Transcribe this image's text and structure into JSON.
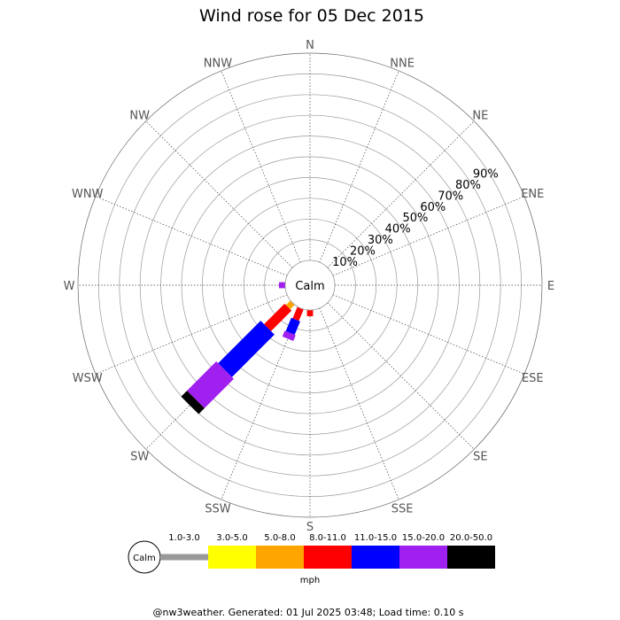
{
  "chart_data": {
    "type": "wind-rose",
    "title": "Wind rose for 05 Dec 2015",
    "directions": [
      "N",
      "NNE",
      "NE",
      "ENE",
      "E",
      "ESE",
      "SE",
      "SSE",
      "S",
      "SSW",
      "SW",
      "WSW",
      "W",
      "WNW",
      "NW",
      "NNW"
    ],
    "radial_ticks": [
      "10%",
      "20%",
      "30%",
      "40%",
      "50%",
      "60%",
      "70%",
      "80%",
      "90%"
    ],
    "radial_max": 100,
    "center_label": "Calm",
    "speed_bins": [
      "1.0-3.0",
      "3.0-5.0",
      "5.0-8.0",
      "8.0-11.0",
      "11.0-15.0",
      "15.0-20.0",
      "20.0-50.0"
    ],
    "bin_colors": [
      "#999999",
      "#ffff00",
      "#ffa500",
      "#ff0000",
      "#0000ff",
      "#a020f0",
      "#000000"
    ],
    "legend_calm_label": "Calm",
    "units": "mph",
    "series": [
      {
        "direction": "W",
        "values": [
          0,
          0,
          0,
          0,
          0,
          3,
          0
        ]
      },
      {
        "direction": "WSW",
        "values": [
          0,
          0,
          0,
          0,
          0,
          0,
          0
        ]
      },
      {
        "direction": "SW",
        "values": [
          0,
          0,
          3,
          14,
          29,
          20,
          4
        ]
      },
      {
        "direction": "SSW",
        "values": [
          0,
          0,
          0,
          6,
          7,
          3,
          0
        ]
      },
      {
        "direction": "S",
        "values": [
          0,
          0,
          0,
          3,
          0,
          0,
          0
        ]
      }
    ]
  },
  "footer": "@nw3weather. Generated: 01 Jul 2025 03:48; Load time: 0.10 s"
}
